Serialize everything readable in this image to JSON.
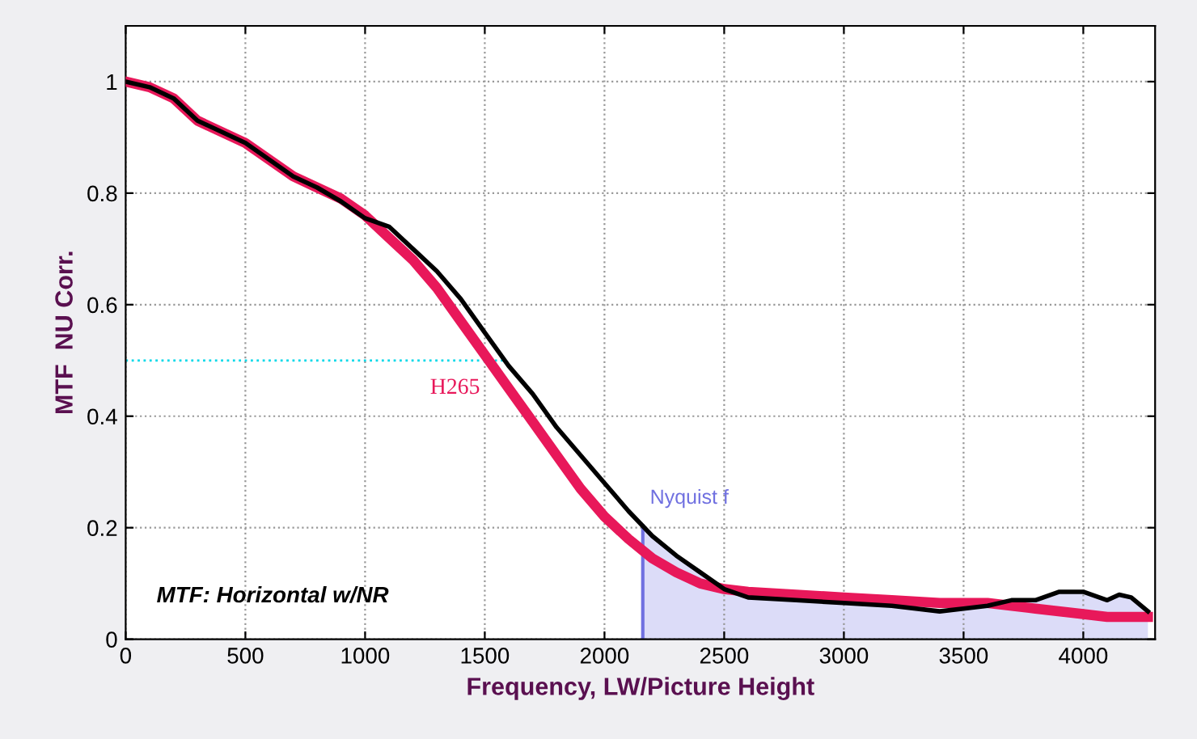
{
  "chart_data": {
    "type": "line",
    "xlabel": "Frequency, LW/Picture Height",
    "ylabel": "MTF  NU Corr.",
    "xlim": [
      0,
      4300
    ],
    "ylim": [
      0,
      1.1
    ],
    "xticks": [
      0,
      500,
      1000,
      1500,
      2000,
      2500,
      3000,
      3500,
      4000
    ],
    "yticks": [
      0,
      0.2,
      0.4,
      0.6,
      0.8,
      1
    ],
    "grid": true,
    "legend": false,
    "line_style": "solid",
    "marker": "none",
    "series": [
      {
        "color": "#000000",
        "x": [
          0,
          100,
          200,
          300,
          500,
          700,
          800,
          900,
          1000,
          1100,
          1200,
          1300,
          1400,
          1500,
          1600,
          1700,
          1800,
          1900,
          2000,
          2100,
          2200,
          2300,
          2400,
          2500,
          2600,
          2800,
          3000,
          3200,
          3400,
          3500,
          3600,
          3700,
          3800,
          3900,
          4000,
          4100,
          4150,
          4200,
          4270
        ],
        "values": [
          1.0,
          0.99,
          0.97,
          0.93,
          0.89,
          0.83,
          0.81,
          0.785,
          0.755,
          0.74,
          0.7,
          0.66,
          0.61,
          0.55,
          0.49,
          0.44,
          0.38,
          0.33,
          0.28,
          0.23,
          0.185,
          0.15,
          0.12,
          0.09,
          0.075,
          0.07,
          0.065,
          0.06,
          0.05,
          0.055,
          0.06,
          0.07,
          0.07,
          0.085,
          0.085,
          0.07,
          0.08,
          0.075,
          0.05
        ]
      },
      {
        "name": "H265",
        "color": "#e8185a",
        "x": [
          0,
          100,
          200,
          300,
          500,
          700,
          800,
          900,
          1000,
          1100,
          1200,
          1300,
          1400,
          1500,
          1600,
          1700,
          1800,
          1900,
          2000,
          2100,
          2200,
          2300,
          2400,
          2500,
          2600,
          2800,
          3000,
          3200,
          3400,
          3600,
          3800,
          4000,
          4100,
          4270
        ],
        "values": [
          1.0,
          0.99,
          0.97,
          0.93,
          0.89,
          0.83,
          0.81,
          0.79,
          0.76,
          0.72,
          0.68,
          0.63,
          0.57,
          0.51,
          0.45,
          0.39,
          0.33,
          0.27,
          0.22,
          0.18,
          0.145,
          0.12,
          0.1,
          0.09,
          0.085,
          0.08,
          0.075,
          0.07,
          0.065,
          0.065,
          0.055,
          0.045,
          0.04,
          0.04
        ]
      },
      {
        "type": "area",
        "color": "#dcdcf8",
        "x": [
          2160,
          2200,
          2300,
          2400,
          2500,
          2600,
          2800,
          3000,
          3200,
          3400,
          3500,
          3600,
          3700,
          3800,
          3900,
          4000,
          4100,
          4150,
          4200,
          4270
        ],
        "values": [
          0.2,
          0.185,
          0.15,
          0.12,
          0.09,
          0.075,
          0.07,
          0.065,
          0.06,
          0.05,
          0.055,
          0.06,
          0.07,
          0.07,
          0.085,
          0.085,
          0.07,
          0.08,
          0.075,
          0.05
        ]
      }
    ],
    "ref_lines": [
      {
        "axis": "y",
        "value": 0.5,
        "color": "#00d8e8",
        "line_style": "dotted"
      },
      {
        "axis": "x",
        "value": 2160,
        "label": "Nyquist f",
        "color": "#7070e0",
        "line_style": "solid"
      }
    ],
    "annotations": [
      "MTF: Horizontal w/NR"
    ]
  }
}
